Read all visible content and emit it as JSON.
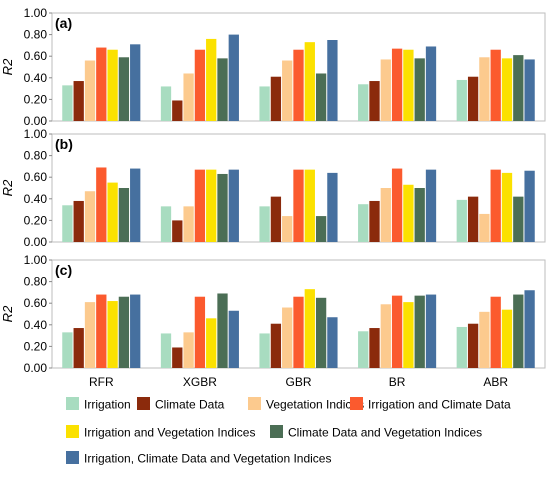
{
  "chart_data": [
    {
      "type": "bar",
      "panel_label": "(a)",
      "ylabel": "R2",
      "ylim": [
        0,
        1.0
      ],
      "yticks": [
        "0.00",
        "0.20",
        "0.40",
        "0.60",
        "0.80",
        "1.00"
      ],
      "categories": [
        "RFR",
        "XGBR",
        "GBR",
        "BR",
        "ABR"
      ],
      "grid": false,
      "series": [
        {
          "name": "Irrigation",
          "values": [
            0.33,
            0.32,
            0.32,
            0.34,
            0.38
          ]
        },
        {
          "name": "Climate Data",
          "values": [
            0.37,
            0.19,
            0.41,
            0.37,
            0.41
          ]
        },
        {
          "name": "Vegetation Indices",
          "values": [
            0.56,
            0.44,
            0.56,
            0.57,
            0.59
          ]
        },
        {
          "name": "Irrigation and Climate Data",
          "values": [
            0.68,
            0.66,
            0.66,
            0.67,
            0.66
          ]
        },
        {
          "name": "Irrigation and Vegetation Indices",
          "values": [
            0.66,
            0.76,
            0.73,
            0.66,
            0.58
          ]
        },
        {
          "name": "Climate Data and Vegetation Indices",
          "values": [
            0.59,
            0.58,
            0.44,
            0.58,
            0.61
          ]
        },
        {
          "name": "Irrigation, Climate Data and Vegetation Indices",
          "values": [
            0.71,
            0.8,
            0.75,
            0.69,
            0.57
          ]
        }
      ]
    },
    {
      "type": "bar",
      "panel_label": "(b)",
      "ylabel": "R2",
      "ylim": [
        0,
        1.0
      ],
      "yticks": [
        "0.00",
        "0.20",
        "0.40",
        "0.60",
        "0.80",
        "1.00"
      ],
      "categories": [
        "RFR",
        "XGBR",
        "GBR",
        "BR",
        "ABR"
      ],
      "grid": false,
      "series": [
        {
          "name": "Irrigation",
          "values": [
            0.34,
            0.33,
            0.33,
            0.35,
            0.39
          ]
        },
        {
          "name": "Climate Data",
          "values": [
            0.38,
            0.2,
            0.42,
            0.38,
            0.42
          ]
        },
        {
          "name": "Vegetation Indices",
          "values": [
            0.47,
            0.33,
            0.24,
            0.5,
            0.26
          ]
        },
        {
          "name": "Irrigation and Climate Data",
          "values": [
            0.69,
            0.67,
            0.67,
            0.68,
            0.67
          ]
        },
        {
          "name": "Irrigation and Vegetation Indices",
          "values": [
            0.55,
            0.67,
            0.67,
            0.53,
            0.64
          ]
        },
        {
          "name": "Climate Data and Vegetation Indices",
          "values": [
            0.5,
            0.63,
            0.24,
            0.5,
            0.42
          ]
        },
        {
          "name": "Irrigation, Climate Data and Vegetation Indices",
          "values": [
            0.68,
            0.67,
            0.64,
            0.67,
            0.66
          ]
        }
      ]
    },
    {
      "type": "bar",
      "panel_label": "(c)",
      "ylabel": "R2",
      "ylim": [
        0,
        1.0
      ],
      "yticks": [
        "0.00",
        "0.20",
        "0.40",
        "0.60",
        "0.80",
        "1.00"
      ],
      "categories": [
        "RFR",
        "XGBR",
        "GBR",
        "BR",
        "ABR"
      ],
      "grid": false,
      "series": [
        {
          "name": "Irrigation",
          "values": [
            0.33,
            0.32,
            0.32,
            0.34,
            0.38
          ]
        },
        {
          "name": "Climate Data",
          "values": [
            0.37,
            0.19,
            0.41,
            0.37,
            0.41
          ]
        },
        {
          "name": "Vegetation Indices",
          "values": [
            0.61,
            0.33,
            0.56,
            0.59,
            0.52
          ]
        },
        {
          "name": "Irrigation and Climate Data",
          "values": [
            0.68,
            0.66,
            0.66,
            0.67,
            0.66
          ]
        },
        {
          "name": "Irrigation and Vegetation Indices",
          "values": [
            0.62,
            0.46,
            0.73,
            0.61,
            0.54
          ]
        },
        {
          "name": "Climate Data and Vegetation Indices",
          "values": [
            0.66,
            0.69,
            0.65,
            0.67,
            0.68
          ]
        },
        {
          "name": "Irrigation, Climate Data and Vegetation Indices",
          "values": [
            0.68,
            0.53,
            0.47,
            0.68,
            0.72
          ]
        }
      ]
    }
  ],
  "legend": {
    "position": "bottom",
    "items": [
      {
        "label": "Irrigation",
        "color": "#a8dcc0"
      },
      {
        "label": "Climate Data",
        "color": "#8b2a0c"
      },
      {
        "label": "Vegetation Indices",
        "color": "#fcca8e"
      },
      {
        "label": "Irrigation and Climate Data",
        "color": "#fb5a2e"
      },
      {
        "label": "Irrigation and Vegetation Indices",
        "color": "#fbe100"
      },
      {
        "label": "Climate Data and Vegetation Indices",
        "color": "#4b6e55"
      },
      {
        "label": "Irrigation, Climate Data and Vegetation Indices",
        "color": "#46709f"
      }
    ]
  }
}
